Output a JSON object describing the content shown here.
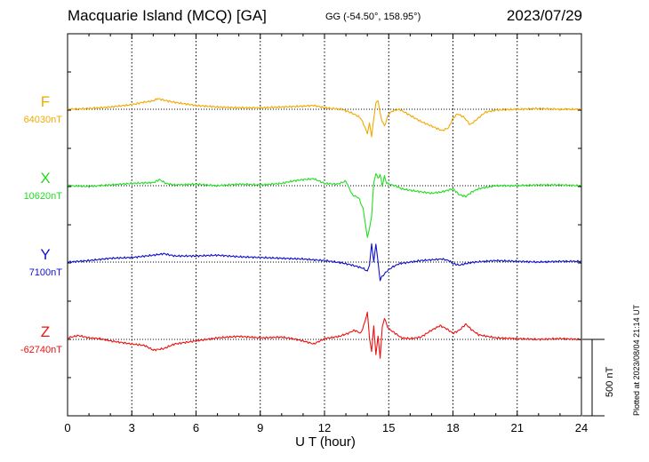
{
  "header": {
    "title": "Macquarie Island (MCQ)  [GA]",
    "coords": "GG (-54.50°, 158.95°)",
    "date": "2023/07/29"
  },
  "footer": {
    "plotted": "Plotted at 2023/08/04 21:14 UT",
    "scale_label": "500 nT"
  },
  "chart_data": {
    "type": "line",
    "xlabel": "U T (hour)",
    "xlim": [
      0,
      24
    ],
    "xticks": [
      0,
      3,
      6,
      9,
      12,
      15,
      18,
      21,
      24
    ],
    "grid": "vertical dotted at every 3 hours",
    "scale_bar_nT": 500,
    "series": [
      {
        "name": "F",
        "baseline_label": "64030nT",
        "color": "#f2a900",
        "x": [
          0,
          1,
          2,
          3,
          3.5,
          4,
          4.2,
          4.5,
          5,
          6,
          7,
          8,
          9,
          10,
          11,
          11.5,
          12,
          12.8,
          13.2,
          13.5,
          13.7,
          13.9,
          14.0,
          14.1,
          14.2,
          14.3,
          14.4,
          14.5,
          14.6,
          14.7,
          14.8,
          14.9,
          15.0,
          15.2,
          15.5,
          16,
          16.5,
          17,
          17.5,
          17.8,
          18,
          18.2,
          18.5,
          18.8,
          19,
          19.5,
          20,
          21,
          22,
          23,
          24
        ],
        "values": [
          0,
          5,
          15,
          30,
          45,
          55,
          70,
          60,
          45,
          25,
          15,
          10,
          10,
          15,
          20,
          25,
          10,
          0,
          -20,
          -40,
          -60,
          -120,
          -160,
          -90,
          -180,
          -60,
          40,
          60,
          -30,
          -80,
          -110,
          -70,
          -30,
          -10,
          0,
          -40,
          -80,
          -110,
          -140,
          -120,
          -60,
          -30,
          -50,
          -100,
          -80,
          -20,
          -5,
          0,
          5,
          0,
          0
        ]
      },
      {
        "name": "X",
        "baseline_label": "10620nT",
        "color": "#22dd22",
        "x": [
          0,
          1,
          2,
          3,
          4,
          4.3,
          4.6,
          5,
          6,
          7,
          8,
          9,
          10,
          10.5,
          11,
          11.5,
          12,
          12.6,
          13.0,
          13.3,
          13.6,
          13.8,
          13.9,
          14.0,
          14.1,
          14.2,
          14.3,
          14.4,
          14.5,
          14.6,
          14.7,
          14.8,
          14.9,
          15.0,
          15.3,
          15.6,
          16,
          16.5,
          17,
          17.5,
          18,
          18.3,
          18.6,
          18.9,
          19.2,
          20,
          21,
          22,
          23,
          24
        ],
        "values": [
          0,
          -5,
          5,
          15,
          20,
          40,
          15,
          5,
          10,
          0,
          10,
          5,
          15,
          30,
          40,
          45,
          15,
          10,
          30,
          -60,
          -80,
          -150,
          -240,
          -340,
          -280,
          -200,
          20,
          80,
          50,
          70,
          0,
          60,
          20,
          10,
          0,
          -20,
          -30,
          -40,
          -50,
          -40,
          -20,
          -60,
          -70,
          -40,
          -20,
          0,
          0,
          5,
          5,
          0
        ]
      },
      {
        "name": "Y",
        "baseline_label": "7100nT",
        "color": "#1111cc",
        "x": [
          0,
          1,
          2,
          3,
          4,
          4.5,
          5,
          6,
          7,
          8,
          9,
          10,
          11,
          12,
          12.8,
          13.3,
          13.8,
          14.0,
          14.1,
          14.2,
          14.3,
          14.4,
          14.5,
          14.6,
          14.7,
          14.8,
          14.9,
          15.0,
          15.2,
          15.5,
          16,
          16.5,
          17,
          17.5,
          17.8,
          18,
          18.3,
          18.6,
          19,
          19.5,
          20,
          21,
          22,
          23,
          24
        ],
        "values": [
          0,
          10,
          25,
          30,
          45,
          55,
          40,
          40,
          45,
          35,
          30,
          25,
          20,
          10,
          -5,
          -20,
          -40,
          -60,
          -20,
          120,
          0,
          120,
          0,
          -120,
          -90,
          -80,
          -60,
          -50,
          -30,
          -10,
          0,
          10,
          15,
          20,
          10,
          -10,
          -20,
          -10,
          0,
          5,
          10,
          5,
          0,
          5,
          5
        ]
      },
      {
        "name": "Z",
        "baseline_label": "-62740nT",
        "color": "#ee1111",
        "x": [
          0,
          0.5,
          1,
          1.5,
          2,
          3,
          3.6,
          4,
          4.5,
          5,
          6,
          7,
          8,
          9,
          10,
          10.5,
          11,
          11.5,
          12,
          12.7,
          13.1,
          13.4,
          13.7,
          13.9,
          14.0,
          14.1,
          14.2,
          14.3,
          14.4,
          14.5,
          14.6,
          14.7,
          14.8,
          14.9,
          15.0,
          15.3,
          15.6,
          16,
          16.5,
          17,
          17.4,
          17.7,
          18,
          18.3,
          18.6,
          18.9,
          19.2,
          20,
          21,
          22,
          23,
          24
        ],
        "values": [
          10,
          25,
          10,
          5,
          -10,
          -30,
          -40,
          -70,
          -60,
          -30,
          -10,
          10,
          20,
          10,
          15,
          5,
          -10,
          -30,
          5,
          20,
          40,
          60,
          40,
          120,
          180,
          10,
          -80,
          90,
          -100,
          20,
          -120,
          80,
          140,
          100,
          70,
          40,
          10,
          5,
          15,
          60,
          90,
          70,
          40,
          60,
          100,
          60,
          30,
          10,
          5,
          0,
          5,
          0
        ]
      }
    ]
  }
}
